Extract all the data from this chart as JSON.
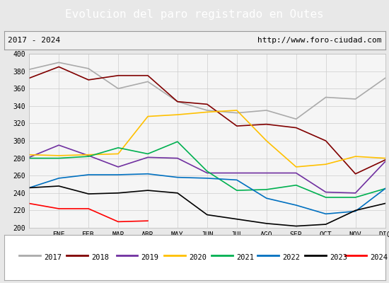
{
  "title": "Evolucion del paro registrado en Outes",
  "subtitle_left": "2017 - 2024",
  "subtitle_right": "http://www.foro-ciudad.com",
  "title_bg_color": "#5b9bd5",
  "title_text_color": "#ffffff",
  "months": [
    "",
    "ENE",
    "FEB",
    "MAR",
    "ABR",
    "MAY",
    "JUN",
    "JUL",
    "AGO",
    "SEP",
    "OCT",
    "NOV",
    "DIC"
  ],
  "ylim": [
    200,
    400
  ],
  "yticks": [
    200,
    220,
    240,
    260,
    280,
    300,
    320,
    340,
    360,
    380,
    400
  ],
  "series": {
    "2017": {
      "color": "#aaaaaa",
      "values": [
        382,
        390,
        383,
        360,
        368,
        345,
        335,
        332,
        335,
        325,
        350,
        348,
        372
      ]
    },
    "2018": {
      "color": "#800000",
      "values": [
        372,
        385,
        370,
        375,
        375,
        345,
        342,
        317,
        319,
        315,
        300,
        262,
        278
      ]
    },
    "2019": {
      "color": "#7030a0",
      "values": [
        281,
        295,
        283,
        270,
        281,
        280,
        263,
        263,
        263,
        263,
        241,
        240,
        276
      ]
    },
    "2020": {
      "color": "#ffc000",
      "values": [
        284,
        283,
        284,
        285,
        328,
        330,
        333,
        335,
        300,
        270,
        273,
        282,
        280
      ]
    },
    "2021": {
      "color": "#00b050",
      "values": [
        280,
        280,
        282,
        292,
        285,
        299,
        265,
        243,
        244,
        249,
        235,
        235,
        245
      ]
    },
    "2022": {
      "color": "#0070c0",
      "values": [
        246,
        257,
        261,
        261,
        262,
        258,
        257,
        255,
        234,
        226,
        216,
        219,
        245
      ]
    },
    "2023": {
      "color": "#000000",
      "values": [
        246,
        248,
        239,
        240,
        243,
        240,
        215,
        210,
        205,
        202,
        204,
        220,
        228
      ]
    },
    "2024": {
      "color": "#ff0000",
      "values": [
        228,
        222,
        222,
        207,
        208,
        null,
        null,
        null,
        null,
        null,
        null,
        null,
        null
      ]
    }
  },
  "background_color": "#e8e8e8",
  "plot_bg_color": "#f5f5f5",
  "grid_color": "#cccccc",
  "subtitle_bg": "#f0f0f0"
}
